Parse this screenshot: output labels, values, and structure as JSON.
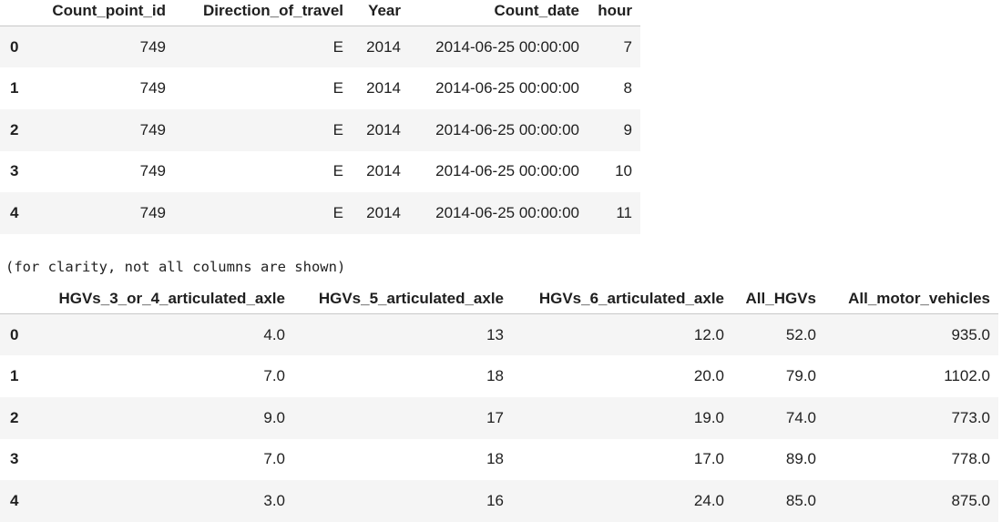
{
  "table1": {
    "columns": [
      "",
      "Count_point_id",
      "Direction_of_travel",
      "Year",
      "Count_date",
      "hour"
    ],
    "rows": [
      [
        "0",
        "749",
        "E",
        "2014",
        "2014-06-25 00:00:00",
        "7"
      ],
      [
        "1",
        "749",
        "E",
        "2014",
        "2014-06-25 00:00:00",
        "8"
      ],
      [
        "2",
        "749",
        "E",
        "2014",
        "2014-06-25 00:00:00",
        "9"
      ],
      [
        "3",
        "749",
        "E",
        "2014",
        "2014-06-25 00:00:00",
        "10"
      ],
      [
        "4",
        "749",
        "E",
        "2014",
        "2014-06-25 00:00:00",
        "11"
      ]
    ]
  },
  "note": "(for clarity, not all columns are shown)",
  "table2": {
    "columns": [
      "",
      "HGVs_3_or_4_articulated_axle",
      "HGVs_5_articulated_axle",
      "HGVs_6_articulated_axle",
      "All_HGVs",
      "All_motor_vehicles"
    ],
    "rows": [
      [
        "0",
        "4.0",
        "13",
        "12.0",
        "52.0",
        "935.0"
      ],
      [
        "1",
        "7.0",
        "18",
        "20.0",
        "79.0",
        "1102.0"
      ],
      [
        "2",
        "9.0",
        "17",
        "19.0",
        "74.0",
        "773.0"
      ],
      [
        "3",
        "7.0",
        "18",
        "17.0",
        "89.0",
        "778.0"
      ],
      [
        "4",
        "3.0",
        "16",
        "24.0",
        "85.0",
        "875.0"
      ]
    ]
  }
}
